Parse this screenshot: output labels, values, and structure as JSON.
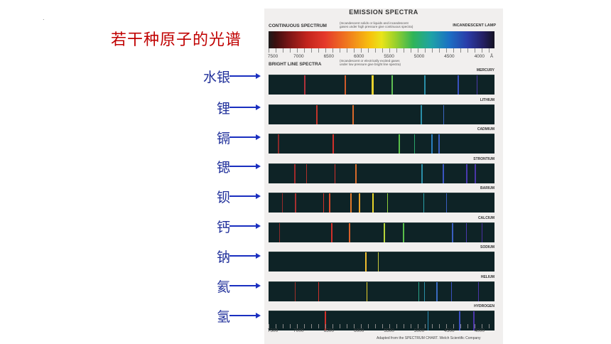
{
  "slide": {
    "title": "若干种原子的光谱",
    "marker": "."
  },
  "labels": [
    "水银",
    "锂",
    "镉",
    "锶",
    "钡",
    "钙",
    "钠",
    "氦",
    "氢"
  ],
  "emission_chart": {
    "title": "EMISSION SPECTRA",
    "continuous_heading": "CONTINUOUS SPECTRUM",
    "continuous_note_1": "(Incandescent solids or liquids and incandescent",
    "continuous_note_2": "gases under high pressure give continuous spectra)",
    "continuous_source": "INCANDESCENT LAMP",
    "bright_heading": "BRIGHT LINE SPECTRA",
    "bright_note_1": "(Incandescent or electrically excited gases",
    "bright_note_2": "under low pressure give bright line spectra)",
    "scale_top": [
      "7500",
      "7000",
      "6500",
      "6000",
      "5500",
      "5000",
      "4500",
      "4000",
      "Å"
    ],
    "scale_bottom": [
      "7500",
      "7000",
      "6500",
      "6000",
      "5500",
      "5000",
      "4500",
      "4000"
    ],
    "credit": "Adapted from the SPECTRUM CHART. Welch Scientific Company",
    "spectra": [
      {
        "name": "MERCURY",
        "lines": [
          {
            "wl": 6907,
            "color": "#b0323a"
          },
          {
            "wl": 6234,
            "color": "#d05a2a"
          },
          {
            "wl": 5790,
            "color": "#e9d430"
          },
          {
            "wl": 5770,
            "color": "#e4c82a"
          },
          {
            "wl": 5461,
            "color": "#5fbf54"
          },
          {
            "wl": 4916,
            "color": "#2a8fa8"
          },
          {
            "wl": 4358,
            "color": "#3a52c0"
          },
          {
            "wl": 4047,
            "color": "#4b3aa8"
          }
        ]
      },
      {
        "name": "LITHIUM",
        "lines": [
          {
            "wl": 6708,
            "color": "#c2342a"
          },
          {
            "wl": 6104,
            "color": "#d9682a"
          },
          {
            "wl": 4972,
            "color": "#2a8fa8"
          },
          {
            "wl": 4603,
            "color": "#3a66c0"
          }
        ]
      },
      {
        "name": "CADMIUM",
        "lines": [
          {
            "wl": 7346,
            "color": "#8a2a2a"
          },
          {
            "wl": 6438,
            "color": "#d0302a"
          },
          {
            "wl": 5338,
            "color": "#5abf4a"
          },
          {
            "wl": 5086,
            "color": "#2aa56a"
          },
          {
            "wl": 4800,
            "color": "#2a7fc0"
          },
          {
            "wl": 4678,
            "color": "#3a5ec0"
          }
        ]
      },
      {
        "name": "STRONTIUM",
        "lines": [
          {
            "wl": 7070,
            "color": "#a02a2a"
          },
          {
            "wl": 6878,
            "color": "#b0302a"
          },
          {
            "wl": 6408,
            "color": "#d0302a"
          },
          {
            "wl": 6060,
            "color": "#d86a2a"
          },
          {
            "wl": 4962,
            "color": "#2a8fa8"
          },
          {
            "wl": 4607,
            "color": "#3a55c0"
          },
          {
            "wl": 4216,
            "color": "#4a3ab0"
          },
          {
            "wl": 4078,
            "color": "#4a36a8"
          }
        ]
      },
      {
        "name": "BARIUM",
        "lines": [
          {
            "wl": 7280,
            "color": "#9a2a2a"
          },
          {
            "wl": 7060,
            "color": "#a83030"
          },
          {
            "wl": 6595,
            "color": "#d0322a"
          },
          {
            "wl": 6498,
            "color": "#d84a2a"
          },
          {
            "wl": 6142,
            "color": "#e0782a"
          },
          {
            "wl": 5997,
            "color": "#e8a02a"
          },
          {
            "wl": 5777,
            "color": "#e8d42a"
          },
          {
            "wl": 5535,
            "color": "#8fcf3a"
          },
          {
            "wl": 4934,
            "color": "#2a9fa8"
          },
          {
            "wl": 4554,
            "color": "#3a5ec0"
          }
        ]
      },
      {
        "name": "CALCIUM",
        "lines": [
          {
            "wl": 7326,
            "color": "#902a2a"
          },
          {
            "wl": 6462,
            "color": "#d0302a"
          },
          {
            "wl": 6162,
            "color": "#d8602a"
          },
          {
            "wl": 5589,
            "color": "#b8d43a"
          },
          {
            "wl": 5270,
            "color": "#5abf4a"
          },
          {
            "wl": 4454,
            "color": "#3a5ec0"
          },
          {
            "wl": 4226,
            "color": "#4a3ab0"
          },
          {
            "wl": 3968,
            "color": "#4a2ea0"
          }
        ]
      },
      {
        "name": "SODIUM",
        "lines": [
          {
            "wl": 5896,
            "color": "#f0c030"
          },
          {
            "wl": 5890,
            "color": "#f0b82a"
          },
          {
            "wl": 5688,
            "color": "#c8c83a"
          }
        ]
      },
      {
        "name": "HELIUM",
        "lines": [
          {
            "wl": 7065,
            "color": "#a0302a"
          },
          {
            "wl": 6678,
            "color": "#d0302a"
          },
          {
            "wl": 5876,
            "color": "#e8d02a"
          },
          {
            "wl": 5016,
            "color": "#2aa58a"
          },
          {
            "wl": 4922,
            "color": "#2a8fa8"
          },
          {
            "wl": 4713,
            "color": "#3a6ac0"
          },
          {
            "wl": 4471,
            "color": "#3a52c0"
          },
          {
            "wl": 4026,
            "color": "#4a36a8"
          }
        ]
      },
      {
        "name": "HYDROGEN",
        "lines": [
          {
            "wl": 6563,
            "color": "#d0302a"
          },
          {
            "wl": 4861,
            "color": "#2a8fb8"
          },
          {
            "wl": 4340,
            "color": "#3a4ec0"
          },
          {
            "wl": 4102,
            "color": "#4a36a8"
          }
        ]
      }
    ]
  }
}
